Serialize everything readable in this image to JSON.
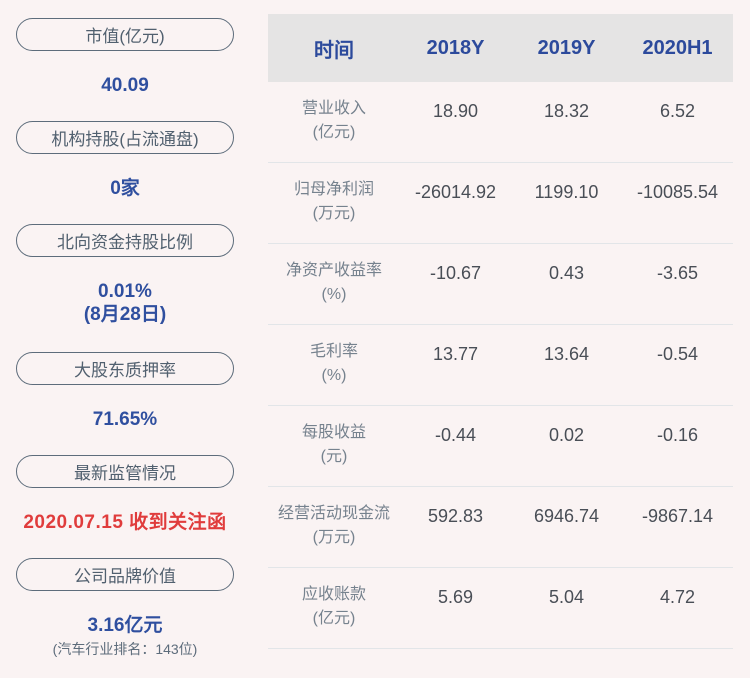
{
  "colors": {
    "page_background": "#faf3f3",
    "pill_border": "#5d6c7b",
    "pill_text": "#51606f",
    "value_blue": "#2f4f9f",
    "alert_red": "#e03c3c",
    "table_header_background": "#e5e4e4",
    "table_header_text": "#2c4a9c",
    "row_label_gray": "#76828e",
    "row_value_dark": "#494e56"
  },
  "sidebar": {
    "items": [
      {
        "label": "市值(亿元)",
        "value": "40.09"
      },
      {
        "label": "机构持股(占流通盘)",
        "value": "0家"
      },
      {
        "label": "北向资金持股比例",
        "value": "0.01%",
        "value_line2": "(8月28日)"
      },
      {
        "label": "大股东质押率",
        "value": "71.65%"
      },
      {
        "label": "最新监管情况",
        "value": "2020.07.15 收到关注函"
      },
      {
        "label": "公司品牌价值",
        "value": "3.16亿元",
        "note": "(汽车行业排名：143位)"
      }
    ]
  },
  "table": {
    "columns": [
      "时间",
      "2018Y",
      "2019Y",
      "2020H1"
    ],
    "rows": [
      {
        "name": "营业收入",
        "unit": "(亿元)",
        "values": [
          "18.90",
          "18.32",
          "6.52"
        ]
      },
      {
        "name": "归母净利润",
        "unit": "(万元)",
        "values": [
          "-26014.92",
          "1199.10",
          "-10085.54"
        ]
      },
      {
        "name": "净资产收益率",
        "unit": "(%)",
        "values": [
          "-10.67",
          "0.43",
          "-3.65"
        ]
      },
      {
        "name": "毛利率",
        "unit": "(%)",
        "values": [
          "13.77",
          "13.64",
          "-0.54"
        ]
      },
      {
        "name": "每股收益",
        "unit": "(元)",
        "values": [
          "-0.44",
          "0.02",
          "-0.16"
        ]
      },
      {
        "name": "经营活动现金流",
        "unit": "(万元)",
        "values": [
          "592.83",
          "6946.74",
          "-9867.14"
        ]
      },
      {
        "name": "应收账款",
        "unit": "(亿元)",
        "values": [
          "5.69",
          "5.04",
          "4.72"
        ]
      }
    ]
  }
}
